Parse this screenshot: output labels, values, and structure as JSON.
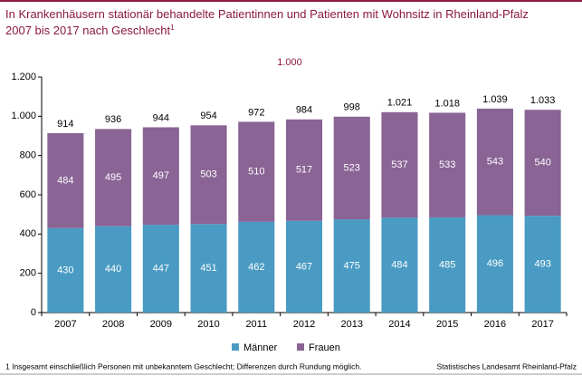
{
  "chart_data": {
    "type": "stacked_bar",
    "title": [
      "In Krankenhäusern stationär behandelte Patientinnen und Patienten mit Wohnsitz in Rheinland-Pfalz",
      "2007 bis 2017 nach Geschlecht"
    ],
    "title_note": "1",
    "unit_label": "1.000",
    "categories": [
      "2007",
      "2008",
      "2009",
      "2010",
      "2011",
      "2012",
      "2013",
      "2014",
      "2015",
      "2016",
      "2017"
    ],
    "series": [
      {
        "name": "Männer",
        "color": "#4a9bc3",
        "values": [
          430,
          440,
          447,
          451,
          462,
          467,
          475,
          484,
          485,
          496,
          493
        ]
      },
      {
        "name": "Frauen",
        "color": "#8a6495",
        "values": [
          484,
          495,
          497,
          503,
          510,
          517,
          523,
          537,
          533,
          543,
          540
        ]
      }
    ],
    "totals": {
      "values": [
        914,
        936,
        944,
        954,
        972,
        984,
        998,
        1021,
        1018,
        1039,
        1033
      ],
      "value_labels": [
        "914",
        "936",
        "944",
        "954",
        "972",
        "984",
        "998",
        "1.021",
        "1.018",
        "1.039",
        "1.033"
      ]
    },
    "ylim": [
      0,
      1200
    ],
    "yticks": [
      0,
      200,
      400,
      600,
      800,
      {
        "value": 1000,
        "label": "1.000"
      },
      {
        "value": 1200,
        "label": "1.200"
      }
    ],
    "grid": false,
    "legend": "bottom",
    "footnote": "1 Insgesamt einschließlich Personen mit unbekanntem Geschlecht; Differenzen durch Rundung möglich.",
    "source": "Statistisches Landesamt Rheinland-Pfalz"
  }
}
